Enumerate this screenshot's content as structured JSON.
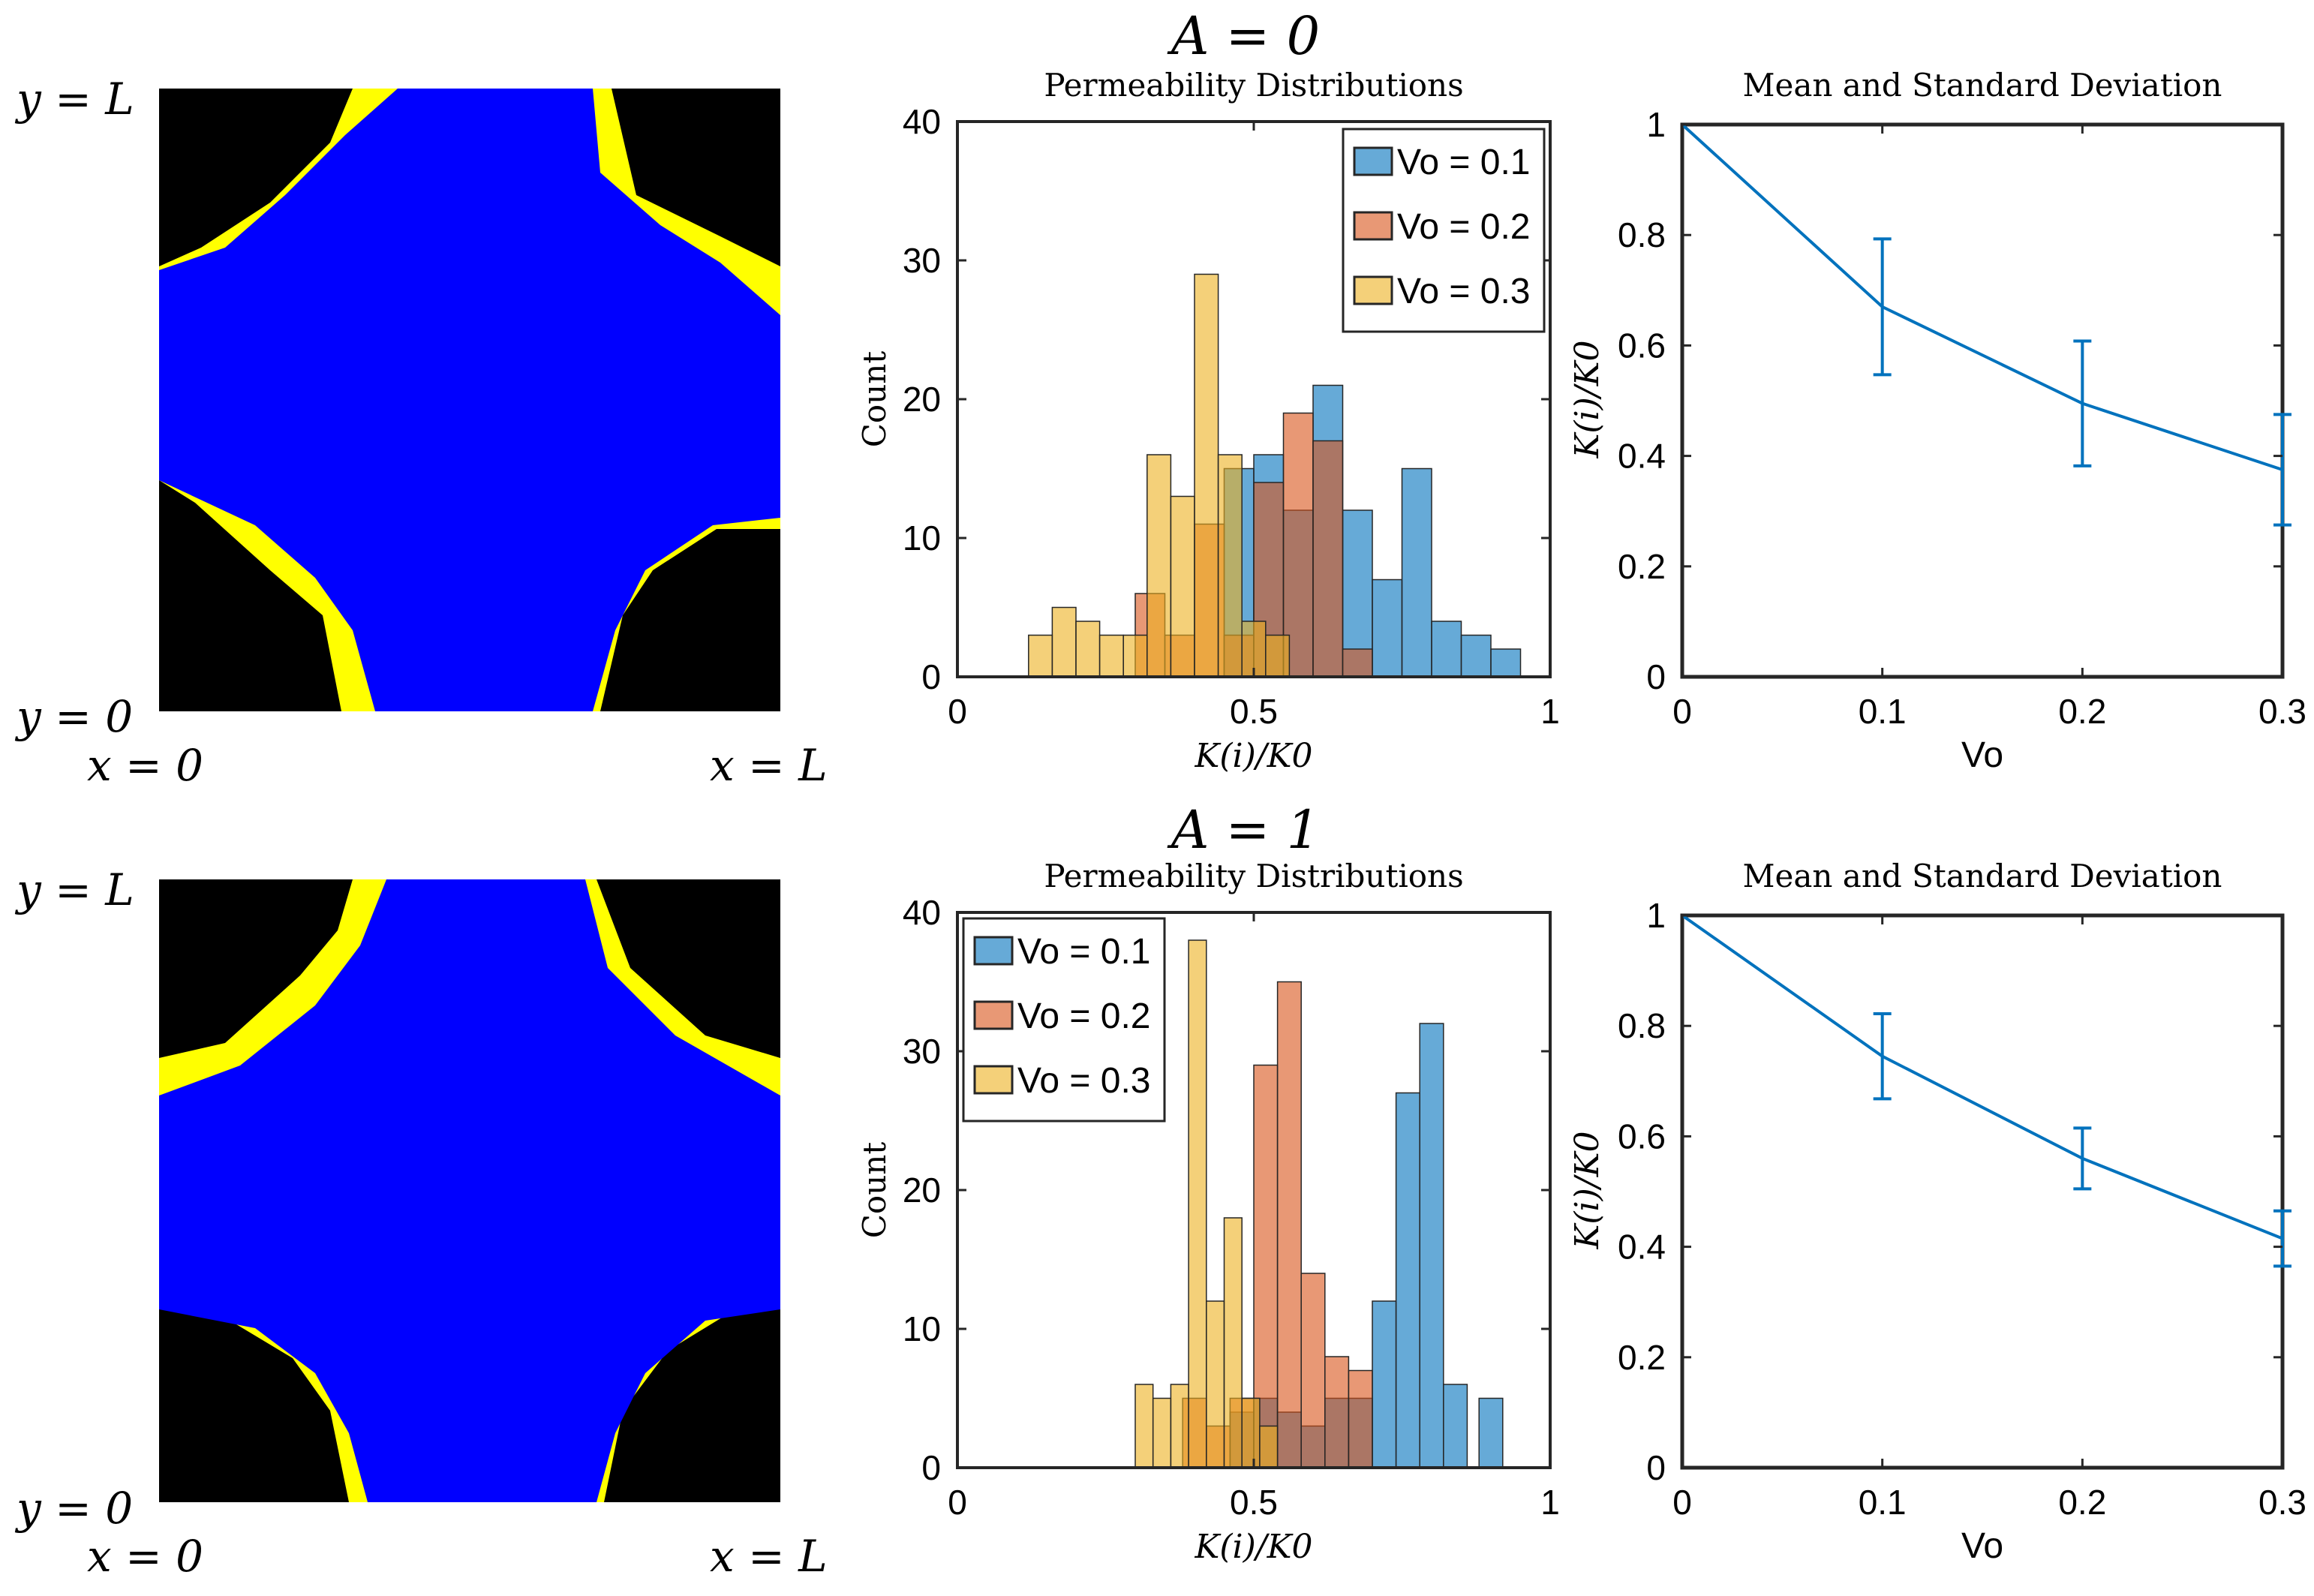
{
  "rows": [
    {
      "header": "A = 0",
      "domain_labels": {
        "y_top": "y = L",
        "y_bottom": "y = 0",
        "x_left": "x = 0",
        "x_right": "x = L"
      },
      "colors": {
        "solid": "#000000",
        "pore": "#0000ff",
        "interface": "#ffff00"
      },
      "hist": {
        "title": "Permeability Distributions",
        "xlabel": "K(i)/K0",
        "ylabel": "Count",
        "xticks": [
          "0",
          "0.5",
          "1"
        ],
        "yticks": [
          "0",
          "10",
          "20",
          "30",
          "40"
        ],
        "legend": [
          "Vo = 0.1",
          "Vo = 0.2",
          "Vo = 0.3"
        ]
      },
      "line": {
        "title": "Mean and Standard Deviation",
        "xlabel": "Vo",
        "ylabel": "K(i)/K0",
        "xticks": [
          "0",
          "0.1",
          "0.2",
          "0.3"
        ],
        "yticks": [
          "0",
          "0.2",
          "0.4",
          "0.6",
          "0.8",
          "1"
        ]
      }
    },
    {
      "header": "A = 1",
      "domain_labels": {
        "y_top": "y = L",
        "y_bottom": "y = 0",
        "x_left": "x = 0",
        "x_right": "x = L"
      },
      "colors": {
        "solid": "#000000",
        "pore": "#0000ff",
        "interface": "#ffff00"
      },
      "hist": {
        "title": "Permeability Distributions",
        "xlabel": "K(i)/K0",
        "ylabel": "Count",
        "xticks": [
          "0",
          "0.5",
          "1"
        ],
        "yticks": [
          "0",
          "10",
          "20",
          "30",
          "40"
        ],
        "legend": [
          "Vo = 0.1",
          "Vo = 0.2",
          "Vo = 0.3"
        ]
      },
      "line": {
        "title": "Mean and Standard Deviation",
        "xlabel": "Vo",
        "ylabel": "K(i)/K0",
        "xticks": [
          "0",
          "0.1",
          "0.2",
          "0.3"
        ],
        "yticks": [
          "0",
          "0.2",
          "0.4",
          "0.6",
          "0.8",
          "1"
        ]
      }
    }
  ],
  "chart_data": [
    {
      "type": "bar",
      "title": "Permeability Distributions",
      "subtitle": "A = 0",
      "xlabel": "K(i)/K0",
      "ylabel": "Count",
      "xlim": [
        0,
        1
      ],
      "ylim": [
        0,
        40
      ],
      "legend_position": "top-right",
      "series": [
        {
          "name": "Vo = 0.1",
          "color": "#0072BD",
          "bins": [
            {
              "x0": 0.45,
              "x1": 0.5,
              "count": 15
            },
            {
              "x0": 0.5,
              "x1": 0.55,
              "count": 16
            },
            {
              "x0": 0.55,
              "x1": 0.6,
              "count": 12
            },
            {
              "x0": 0.6,
              "x1": 0.65,
              "count": 21
            },
            {
              "x0": 0.65,
              "x1": 0.7,
              "count": 12
            },
            {
              "x0": 0.7,
              "x1": 0.75,
              "count": 7
            },
            {
              "x0": 0.75,
              "x1": 0.8,
              "count": 15
            },
            {
              "x0": 0.8,
              "x1": 0.85,
              "count": 4
            },
            {
              "x0": 0.85,
              "x1": 0.9,
              "count": 3
            },
            {
              "x0": 0.9,
              "x1": 0.95,
              "count": 2
            }
          ]
        },
        {
          "name": "Vo = 0.2",
          "color": "#D95319",
          "bins": [
            {
              "x0": 0.3,
              "x1": 0.35,
              "count": 6
            },
            {
              "x0": 0.35,
              "x1": 0.4,
              "count": 3
            },
            {
              "x0": 0.4,
              "x1": 0.45,
              "count": 11
            },
            {
              "x0": 0.45,
              "x1": 0.5,
              "count": 3
            },
            {
              "x0": 0.5,
              "x1": 0.55,
              "count": 14
            },
            {
              "x0": 0.55,
              "x1": 0.6,
              "count": 19
            },
            {
              "x0": 0.6,
              "x1": 0.65,
              "count": 17
            },
            {
              "x0": 0.65,
              "x1": 0.7,
              "count": 2
            }
          ]
        },
        {
          "name": "Vo = 0.3",
          "color": "#EDB120",
          "bins": [
            {
              "x0": 0.12,
              "x1": 0.16,
              "count": 3
            },
            {
              "x0": 0.16,
              "x1": 0.2,
              "count": 5
            },
            {
              "x0": 0.2,
              "x1": 0.24,
              "count": 4
            },
            {
              "x0": 0.24,
              "x1": 0.28,
              "count": 3
            },
            {
              "x0": 0.28,
              "x1": 0.32,
              "count": 3
            },
            {
              "x0": 0.32,
              "x1": 0.36,
              "count": 16
            },
            {
              "x0": 0.36,
              "x1": 0.4,
              "count": 13
            },
            {
              "x0": 0.4,
              "x1": 0.44,
              "count": 29
            },
            {
              "x0": 0.44,
              "x1": 0.48,
              "count": 16
            },
            {
              "x0": 0.48,
              "x1": 0.52,
              "count": 4
            },
            {
              "x0": 0.52,
              "x1": 0.56,
              "count": 3
            }
          ]
        }
      ]
    },
    {
      "type": "line",
      "title": "Mean and Standard Deviation",
      "subtitle": "A = 0",
      "xlabel": "Vo",
      "ylabel": "K(i)/K0",
      "xlim": [
        0,
        0.3
      ],
      "ylim": [
        0,
        1
      ],
      "series": [
        {
          "name": "mean",
          "color": "#0072BD",
          "x": [
            0,
            0.1,
            0.2,
            0.3
          ],
          "y": [
            1.0,
            0.67,
            0.495,
            0.375
          ],
          "err": [
            0,
            0.123,
            0.113,
            0.1
          ]
        }
      ]
    },
    {
      "type": "bar",
      "title": "Permeability Distributions",
      "subtitle": "A = 1",
      "xlabel": "K(i)/K0",
      "ylabel": "Count",
      "xlim": [
        0,
        1
      ],
      "ylim": [
        0,
        40
      ],
      "legend_position": "top-left",
      "series": [
        {
          "name": "Vo = 0.1",
          "color": "#0072BD",
          "bins": [
            {
              "x0": 0.46,
              "x1": 0.5,
              "count": 4
            },
            {
              "x0": 0.5,
              "x1": 0.54,
              "count": 5
            },
            {
              "x0": 0.54,
              "x1": 0.58,
              "count": 4
            },
            {
              "x0": 0.58,
              "x1": 0.62,
              "count": 3
            },
            {
              "x0": 0.62,
              "x1": 0.66,
              "count": 5
            },
            {
              "x0": 0.66,
              "x1": 0.7,
              "count": 5
            },
            {
              "x0": 0.7,
              "x1": 0.74,
              "count": 12
            },
            {
              "x0": 0.74,
              "x1": 0.78,
              "count": 27
            },
            {
              "x0": 0.78,
              "x1": 0.82,
              "count": 32
            },
            {
              "x0": 0.82,
              "x1": 0.86,
              "count": 6
            },
            {
              "x0": 0.88,
              "x1": 0.92,
              "count": 5
            }
          ]
        },
        {
          "name": "Vo = 0.2",
          "color": "#D95319",
          "bins": [
            {
              "x0": 0.38,
              "x1": 0.42,
              "count": 5
            },
            {
              "x0": 0.42,
              "x1": 0.46,
              "count": 3
            },
            {
              "x0": 0.46,
              "x1": 0.5,
              "count": 5
            },
            {
              "x0": 0.5,
              "x1": 0.54,
              "count": 29
            },
            {
              "x0": 0.54,
              "x1": 0.58,
              "count": 35
            },
            {
              "x0": 0.58,
              "x1": 0.62,
              "count": 14
            },
            {
              "x0": 0.62,
              "x1": 0.66,
              "count": 8
            },
            {
              "x0": 0.66,
              "x1": 0.7,
              "count": 7
            }
          ]
        },
        {
          "name": "Vo = 0.3",
          "color": "#EDB120",
          "bins": [
            {
              "x0": 0.3,
              "x1": 0.33,
              "count": 6
            },
            {
              "x0": 0.33,
              "x1": 0.36,
              "count": 5
            },
            {
              "x0": 0.36,
              "x1": 0.39,
              "count": 6
            },
            {
              "x0": 0.39,
              "x1": 0.42,
              "count": 38
            },
            {
              "x0": 0.42,
              "x1": 0.45,
              "count": 12
            },
            {
              "x0": 0.45,
              "x1": 0.48,
              "count": 18
            },
            {
              "x0": 0.48,
              "x1": 0.51,
              "count": 5
            },
            {
              "x0": 0.51,
              "x1": 0.54,
              "count": 3
            }
          ]
        }
      ]
    },
    {
      "type": "line",
      "title": "Mean and Standard Deviation",
      "subtitle": "A = 1",
      "xlabel": "Vo",
      "ylabel": "K(i)/K0",
      "xlim": [
        0,
        0.3
      ],
      "ylim": [
        0,
        1
      ],
      "series": [
        {
          "name": "mean",
          "color": "#0072BD",
          "x": [
            0,
            0.1,
            0.2,
            0.3
          ],
          "y": [
            1.0,
            0.745,
            0.56,
            0.415
          ],
          "err": [
            0,
            0.077,
            0.055,
            0.05
          ]
        }
      ]
    }
  ]
}
